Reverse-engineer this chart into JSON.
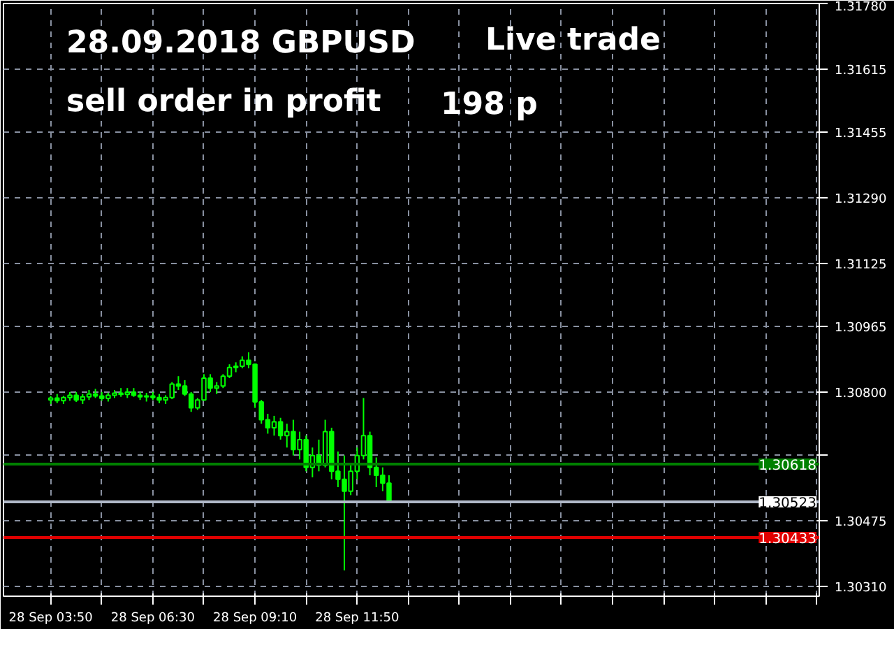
{
  "chart_data": {
    "type": "candlestick",
    "annotations": [
      "28.09.2018  GBPUSD",
      "Live trade",
      "sell order in profit",
      "198 p"
    ],
    "x": [
      "2018-09-28T03:50",
      "2018-09-28T04:00",
      "2018-09-28T04:10",
      "2018-09-28T04:20",
      "2018-09-28T04:30",
      "2018-09-28T04:40",
      "2018-09-28T04:50",
      "2018-09-28T05:00",
      "2018-09-28T05:10",
      "2018-09-28T05:20",
      "2018-09-28T05:30",
      "2018-09-28T05:40",
      "2018-09-28T05:50",
      "2018-09-28T06:00",
      "2018-09-28T06:10",
      "2018-09-28T06:20",
      "2018-09-28T06:30",
      "2018-09-28T06:40",
      "2018-09-28T06:50",
      "2018-09-28T07:00",
      "2018-09-28T07:10",
      "2018-09-28T07:20",
      "2018-09-28T07:30",
      "2018-09-28T07:40",
      "2018-09-28T07:50",
      "2018-09-28T08:00",
      "2018-09-28T08:10",
      "2018-09-28T08:20",
      "2018-09-28T08:30",
      "2018-09-28T08:40",
      "2018-09-28T08:50",
      "2018-09-28T09:00",
      "2018-09-28T09:10",
      "2018-09-28T09:20",
      "2018-09-28T09:30",
      "2018-09-28T09:40",
      "2018-09-28T09:50",
      "2018-09-28T10:00",
      "2018-09-28T10:10",
      "2018-09-28T10:20",
      "2018-09-28T10:30",
      "2018-09-28T10:40",
      "2018-09-28T10:50",
      "2018-09-28T11:00",
      "2018-09-28T11:10",
      "2018-09-28T11:20",
      "2018-09-28T11:30",
      "2018-09-28T11:40",
      "2018-09-28T11:50",
      "2018-09-28T12:00",
      "2018-09-28T12:10",
      "2018-09-28T12:20",
      "2018-09-28T12:30",
      "2018-09-28T12:40"
    ],
    "ohlc": [
      [
        1.3078,
        1.3079,
        1.3077,
        1.30785
      ],
      [
        1.30785,
        1.30795,
        1.30772,
        1.30778
      ],
      [
        1.30778,
        1.3079,
        1.3077,
        1.30786
      ],
      [
        1.30786,
        1.308,
        1.30778,
        1.30792
      ],
      [
        1.30792,
        1.308,
        1.30775,
        1.3078
      ],
      [
        1.3078,
        1.30795,
        1.3077,
        1.30788
      ],
      [
        1.30788,
        1.30805,
        1.3078,
        1.30795
      ],
      [
        1.30795,
        1.30808,
        1.30785,
        1.3079
      ],
      [
        1.3079,
        1.308,
        1.30778,
        1.30784
      ],
      [
        1.30784,
        1.30798,
        1.30776,
        1.30792
      ],
      [
        1.30792,
        1.30805,
        1.30785,
        1.30797
      ],
      [
        1.30797,
        1.3081,
        1.30788,
        1.30794
      ],
      [
        1.30794,
        1.3081,
        1.30785,
        1.308
      ],
      [
        1.308,
        1.3081,
        1.30788,
        1.30792
      ],
      [
        1.30792,
        1.308,
        1.3078,
        1.30788
      ],
      [
        1.30788,
        1.30798,
        1.30776,
        1.3079
      ],
      [
        1.3079,
        1.308,
        1.3078,
        1.30786
      ],
      [
        1.30786,
        1.30795,
        1.30772,
        1.3078
      ],
      [
        1.3078,
        1.30792,
        1.3077,
        1.30786
      ],
      [
        1.30786,
        1.30825,
        1.30782,
        1.3082
      ],
      [
        1.3082,
        1.3084,
        1.30805,
        1.30815
      ],
      [
        1.30815,
        1.3083,
        1.3079,
        1.30795
      ],
      [
        1.30795,
        1.308,
        1.3075,
        1.3076
      ],
      [
        1.3076,
        1.30785,
        1.30755,
        1.3078
      ],
      [
        1.3078,
        1.30845,
        1.30778,
        1.30835
      ],
      [
        1.30835,
        1.30845,
        1.308,
        1.3081
      ],
      [
        1.3081,
        1.30825,
        1.30795,
        1.30815
      ],
      [
        1.30815,
        1.30845,
        1.3081,
        1.3084
      ],
      [
        1.3084,
        1.3087,
        1.30835,
        1.30862
      ],
      [
        1.30862,
        1.30875,
        1.3085,
        1.30865
      ],
      [
        1.30865,
        1.3089,
        1.3086,
        1.3088
      ],
      [
        1.3088,
        1.309,
        1.3086,
        1.3087
      ],
      [
        1.3087,
        1.30872,
        1.3076,
        1.30775
      ],
      [
        1.30775,
        1.3078,
        1.3072,
        1.3073
      ],
      [
        1.3073,
        1.30745,
        1.30695,
        1.3071
      ],
      [
        1.3071,
        1.3074,
        1.3069,
        1.30725
      ],
      [
        1.30725,
        1.30735,
        1.3068,
        1.3069
      ],
      [
        1.3069,
        1.3072,
        1.3066,
        1.307
      ],
      [
        1.307,
        1.3073,
        1.3064,
        1.30655
      ],
      [
        1.30655,
        1.307,
        1.3063,
        1.3068
      ],
      [
        1.3068,
        1.3069,
        1.306,
        1.3061
      ],
      [
        1.3061,
        1.3066,
        1.30585,
        1.3064
      ],
      [
        1.3064,
        1.3068,
        1.306,
        1.30615
      ],
      [
        1.30615,
        1.3073,
        1.3061,
        1.307
      ],
      [
        1.307,
        1.3071,
        1.3058,
        1.306
      ],
      [
        1.306,
        1.3065,
        1.3056,
        1.3058
      ],
      [
        1.3058,
        1.3064,
        1.3035,
        1.3055
      ],
      [
        1.3055,
        1.3062,
        1.3054,
        1.306
      ],
      [
        1.306,
        1.3066,
        1.3058,
        1.3064
      ],
      [
        1.3064,
        1.30785,
        1.3063,
        1.3069
      ],
      [
        1.3069,
        1.307,
        1.3059,
        1.3061
      ],
      [
        1.3061,
        1.30635,
        1.3056,
        1.3059
      ],
      [
        1.3059,
        1.3061,
        1.3055,
        1.3057
      ],
      [
        1.3057,
        1.3059,
        1.3052,
        1.30523
      ]
    ],
    "color": "#00ff00",
    "xlim": [
      "2018-09-28T02:36",
      "2018-09-28T23:54"
    ],
    "xticks": [
      {
        "value": "2018-09-28T03:50",
        "label": "28 Sep 03:50"
      },
      {
        "value": "2018-09-28T05:10",
        "label": null
      },
      {
        "value": "2018-09-28T06:30",
        "label": "28 Sep 06:30"
      },
      {
        "value": "2018-09-28T07:50",
        "label": null
      },
      {
        "value": "2018-09-28T09:10",
        "label": "28 Sep 09:10"
      },
      {
        "value": "2018-09-28T10:30",
        "label": null
      },
      {
        "value": "2018-09-28T11:50",
        "label": "28 Sep 11:50"
      },
      {
        "value": "2018-09-28T13:10",
        "label": null
      },
      {
        "value": "2018-09-28T14:30",
        "label": null
      },
      {
        "value": "2018-09-28T15:50",
        "label": null
      },
      {
        "value": "2018-09-28T17:10",
        "label": null
      },
      {
        "value": "2018-09-28T18:30",
        "label": null
      },
      {
        "value": "2018-09-28T19:50",
        "label": null
      },
      {
        "value": "2018-09-28T21:10",
        "label": null
      },
      {
        "value": "2018-09-28T22:30",
        "label": null
      },
      {
        "value": "2018-09-28T23:50",
        "label": null
      }
    ],
    "ylim": [
      1.30285,
      1.3178
    ],
    "yticks": [
      {
        "value": 1.3031,
        "label": "1.30310"
      },
      {
        "value": 1.30475,
        "label": "1.30475"
      },
      {
        "value": 1.3064,
        "label": null
      },
      {
        "value": 1.308,
        "label": "1.30800"
      },
      {
        "value": 1.30965,
        "label": "1.30965"
      },
      {
        "value": 1.31125,
        "label": "1.31125"
      },
      {
        "value": 1.3129,
        "label": "1.31290"
      },
      {
        "value": 1.31455,
        "label": "1.31455"
      },
      {
        "value": 1.31615,
        "label": "1.31615"
      },
      {
        "value": 1.3178,
        "label": "1.31780"
      }
    ],
    "ref_lines": [
      {
        "axis": "y",
        "value": 1.30618,
        "label": "1.30618",
        "color": "#008000"
      },
      {
        "axis": "y",
        "value": 1.30523,
        "label": "1.30523",
        "color": "#b0b8c8"
      },
      {
        "axis": "y",
        "value": 1.30433,
        "label": "1.30433",
        "color": "#e00000"
      }
    ],
    "grid": true
  }
}
